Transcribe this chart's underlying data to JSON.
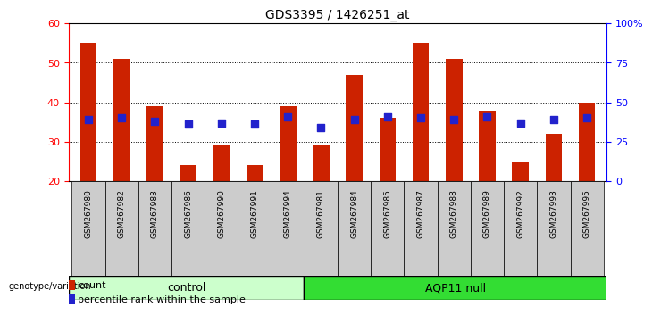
{
  "title": "GDS3395 / 1426251_at",
  "samples": [
    "GSM267980",
    "GSM267982",
    "GSM267983",
    "GSM267986",
    "GSM267990",
    "GSM267991",
    "GSM267994",
    "GSM267981",
    "GSM267984",
    "GSM267985",
    "GSM267987",
    "GSM267988",
    "GSM267989",
    "GSM267992",
    "GSM267993",
    "GSM267995"
  ],
  "counts": [
    55,
    51,
    39,
    24,
    29,
    24,
    39,
    29,
    47,
    36,
    55,
    51,
    38,
    25,
    32,
    40
  ],
  "percentiles": [
    39,
    40,
    38,
    36,
    37,
    36,
    41,
    34,
    39,
    41,
    40,
    39,
    41,
    37,
    39,
    40
  ],
  "bar_color": "#cc2200",
  "dot_color": "#2222cc",
  "ylim": [
    20,
    60
  ],
  "yticks": [
    20,
    30,
    40,
    50,
    60
  ],
  "right_ylim": [
    0,
    100
  ],
  "right_yticks": [
    0,
    25,
    50,
    75,
    100
  ],
  "right_yticklabels": [
    "0",
    "25",
    "50",
    "75",
    "100%"
  ],
  "control_label": "control",
  "aqp11_label": "AQP11 null",
  "genotype_label": "genotype/variation",
  "legend_count": "count",
  "legend_pct": "percentile rank within the sample",
  "control_color": "#ccffcc",
  "aqp11_color": "#33dd33",
  "n_control": 7,
  "n_aqp11": 9,
  "bar_width": 0.5,
  "dot_size": 28,
  "col_bg": "#cccccc"
}
